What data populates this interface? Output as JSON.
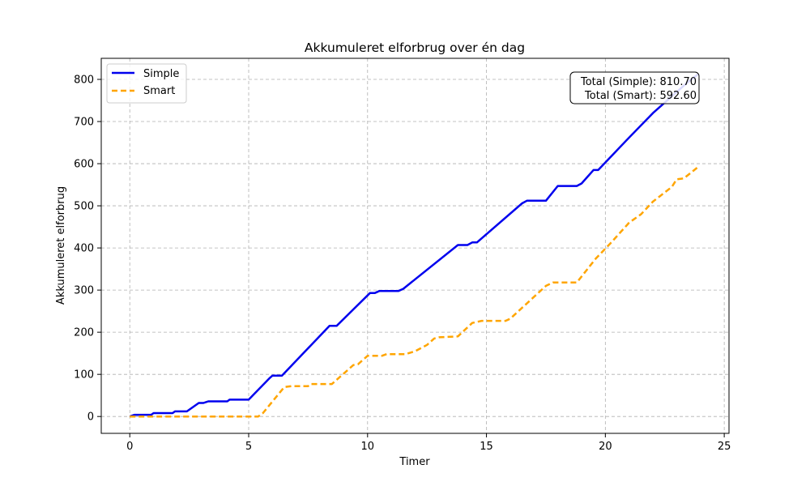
{
  "chart_data": {
    "type": "line",
    "title": "Akkumuleret elforbrug over én dag",
    "xlabel": "Timer",
    "ylabel": "Akkumuleret elforbrug",
    "xlim": [
      -1.2,
      25.2
    ],
    "ylim": [
      -40,
      850
    ],
    "xticks": [
      "0",
      "5",
      "10",
      "15",
      "20",
      "25"
    ],
    "yticks": [
      "0",
      "100",
      "200",
      "300",
      "400",
      "500",
      "600",
      "700",
      "800"
    ],
    "grid": true,
    "legend_position": "upper-left",
    "series": [
      {
        "name": "Simple",
        "color": "#0000ee",
        "style": "solid",
        "points": [
          [
            0,
            0
          ],
          [
            0.2,
            4
          ],
          [
            0.9,
            4
          ],
          [
            1.0,
            8
          ],
          [
            1.8,
            8
          ],
          [
            1.9,
            12
          ],
          [
            2.4,
            12
          ],
          [
            2.9,
            32
          ],
          [
            3.1,
            32
          ],
          [
            3.3,
            36
          ],
          [
            4.1,
            36
          ],
          [
            4.2,
            40
          ],
          [
            4.9,
            40
          ],
          [
            5.0,
            40
          ],
          [
            5.9,
            92
          ],
          [
            6.0,
            97
          ],
          [
            6.4,
            97
          ],
          [
            8.4,
            215
          ],
          [
            8.7,
            215
          ],
          [
            10.1,
            293
          ],
          [
            10.3,
            293
          ],
          [
            10.5,
            298
          ],
          [
            11.3,
            298
          ],
          [
            11.5,
            303
          ],
          [
            13.8,
            407
          ],
          [
            14.2,
            407
          ],
          [
            14.4,
            413
          ],
          [
            14.6,
            413
          ],
          [
            16.5,
            506
          ],
          [
            16.7,
            512
          ],
          [
            17.5,
            512
          ],
          [
            18.0,
            547
          ],
          [
            18.8,
            547
          ],
          [
            19.0,
            553
          ],
          [
            19.5,
            585
          ],
          [
            19.7,
            585
          ],
          [
            21.0,
            662
          ],
          [
            22.0,
            720
          ],
          [
            23.0,
            770
          ],
          [
            23.5,
            795
          ],
          [
            23.9,
            812
          ]
        ]
      },
      {
        "name": "Smart",
        "color": "#ffa500",
        "style": "dashed",
        "points": [
          [
            0,
            0
          ],
          [
            5.4,
            0
          ],
          [
            5.6,
            8
          ],
          [
            6.5,
            70
          ],
          [
            6.8,
            72
          ],
          [
            7.5,
            72
          ],
          [
            7.6,
            77
          ],
          [
            8.5,
            77
          ],
          [
            9.4,
            122
          ],
          [
            9.6,
            124
          ],
          [
            10.0,
            144
          ],
          [
            10.6,
            144
          ],
          [
            10.8,
            148
          ],
          [
            11.6,
            148
          ],
          [
            12.0,
            155
          ],
          [
            12.5,
            170
          ],
          [
            12.8,
            185
          ],
          [
            13.0,
            188
          ],
          [
            13.8,
            190
          ],
          [
            14.4,
            222
          ],
          [
            14.8,
            227
          ],
          [
            15.8,
            227
          ],
          [
            16.0,
            232
          ],
          [
            17.5,
            310
          ],
          [
            17.8,
            318
          ],
          [
            18.8,
            318
          ],
          [
            19.6,
            375
          ],
          [
            20.2,
            410
          ],
          [
            21.0,
            460
          ],
          [
            21.5,
            480
          ],
          [
            22.0,
            510
          ],
          [
            22.8,
            545
          ],
          [
            23.0,
            563
          ],
          [
            23.3,
            565
          ],
          [
            23.9,
            592
          ]
        ]
      }
    ],
    "annotation": {
      "line1": "Total (Simple): 810.70",
      "line2": "Total (Smart): 592.60",
      "position": "upper-right"
    }
  }
}
